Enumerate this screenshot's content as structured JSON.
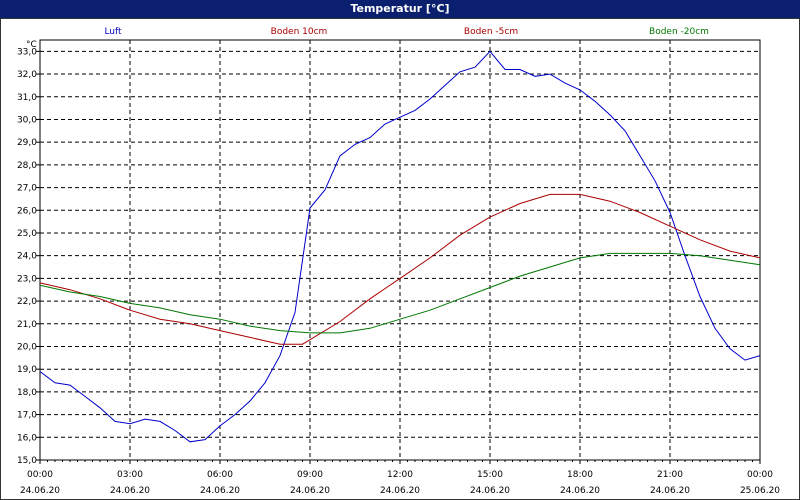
{
  "window": {
    "title": "Temperatur [°C]"
  },
  "chart_data": {
    "type": "line",
    "title": "Temperatur [°C]",
    "yunit": "°C",
    "ylim": [
      15.0,
      33.5
    ],
    "xlim": [
      "24.06.20 00:00",
      "25.06.20 00:00"
    ],
    "grid": true,
    "legend_placement": "top",
    "x_ticks": [
      {
        "time": "00:00",
        "date": "24.06.20"
      },
      {
        "time": "03:00",
        "date": "24.06.20"
      },
      {
        "time": "06:00",
        "date": "24.06.20"
      },
      {
        "time": "09:00",
        "date": "24.06.20"
      },
      {
        "time": "12:00",
        "date": "24.06.20"
      },
      {
        "time": "15:00",
        "date": "24.06.20"
      },
      {
        "time": "18:00",
        "date": "24.06.20"
      },
      {
        "time": "21:00",
        "date": "24.06.20"
      },
      {
        "time": "00:00",
        "date": "25.06.20"
      }
    ],
    "y_ticks": [
      "15,0",
      "16,0",
      "17,0",
      "18,0",
      "19,0",
      "20,0",
      "21,0",
      "22,0",
      "23,0",
      "24,0",
      "25,0",
      "26,0",
      "27,0",
      "28,0",
      "29,0",
      "30,0",
      "31,0",
      "32,0",
      "33,0"
    ],
    "series": [
      {
        "name": "Luft",
        "color": "#0000cc",
        "x": [
          "00:00",
          "00:30",
          "01:00",
          "01:30",
          "02:00",
          "02:30",
          "03:00",
          "03:30",
          "04:00",
          "04:30",
          "05:00",
          "05:30",
          "06:00",
          "06:30",
          "07:00",
          "07:30",
          "08:00",
          "08:30",
          "09:00",
          "09:30",
          "10:00",
          "10:30",
          "11:00",
          "11:30",
          "12:00",
          "12:30",
          "13:00",
          "13:30",
          "14:00",
          "14:30",
          "15:00",
          "15:30",
          "16:00",
          "16:30",
          "17:00",
          "17:30",
          "18:00",
          "18:30",
          "19:00",
          "19:30",
          "20:00",
          "20:30",
          "21:00",
          "21:30",
          "22:00",
          "22:30",
          "23:00",
          "23:30",
          "24:00"
        ],
        "y": [
          18.9,
          18.4,
          18.3,
          17.8,
          17.3,
          16.7,
          16.6,
          16.8,
          16.7,
          16.3,
          15.8,
          15.9,
          16.5,
          17.0,
          17.6,
          18.4,
          19.6,
          21.5,
          26.1,
          26.9,
          28.4,
          28.9,
          29.2,
          29.8,
          30.1,
          30.4,
          30.9,
          31.5,
          32.1,
          32.3,
          33.0,
          32.2,
          32.2,
          31.9,
          32.0,
          31.6,
          31.3,
          30.8,
          30.2,
          29.5,
          28.4,
          27.3,
          25.9,
          24.0,
          22.2,
          20.8,
          19.9,
          19.4,
          19.6
        ]
      },
      {
        "name": "Boden 10cm",
        "color": "#aa0000",
        "x": [
          "00:00",
          "01:00",
          "02:00",
          "03:00",
          "04:00",
          "05:00",
          "06:00",
          "07:00",
          "08:00",
          "08:45",
          "09:00",
          "10:00",
          "11:00",
          "12:00",
          "13:00",
          "14:00",
          "15:00",
          "16:00",
          "17:00",
          "18:00",
          "19:00",
          "20:00",
          "21:00",
          "22:00",
          "23:00",
          "24:00"
        ],
        "y": [
          22.8,
          22.5,
          22.1,
          21.6,
          21.2,
          21.0,
          20.7,
          20.4,
          20.1,
          20.1,
          20.3,
          21.1,
          22.1,
          23.0,
          23.9,
          24.9,
          25.7,
          26.3,
          26.7,
          26.7,
          26.4,
          25.9,
          25.3,
          24.7,
          24.2,
          23.9
        ]
      },
      {
        "name": "Boden -5cm",
        "color": "#aa0000",
        "x": [],
        "y": []
      },
      {
        "name": "Boden -20cm",
        "color": "#007700",
        "x": [
          "00:00",
          "01:00",
          "02:00",
          "03:00",
          "04:00",
          "05:00",
          "06:00",
          "07:00",
          "08:00",
          "09:00",
          "10:00",
          "11:00",
          "12:00",
          "13:00",
          "14:00",
          "15:00",
          "16:00",
          "17:00",
          "18:00",
          "19:00",
          "20:00",
          "21:00",
          "22:00",
          "23:00",
          "24:00"
        ],
        "y": [
          22.7,
          22.4,
          22.2,
          21.9,
          21.7,
          21.4,
          21.2,
          20.9,
          20.7,
          20.6,
          20.6,
          20.8,
          21.2,
          21.6,
          22.1,
          22.6,
          23.1,
          23.5,
          23.9,
          24.1,
          24.1,
          24.1,
          24.0,
          23.8,
          23.6
        ]
      }
    ]
  }
}
